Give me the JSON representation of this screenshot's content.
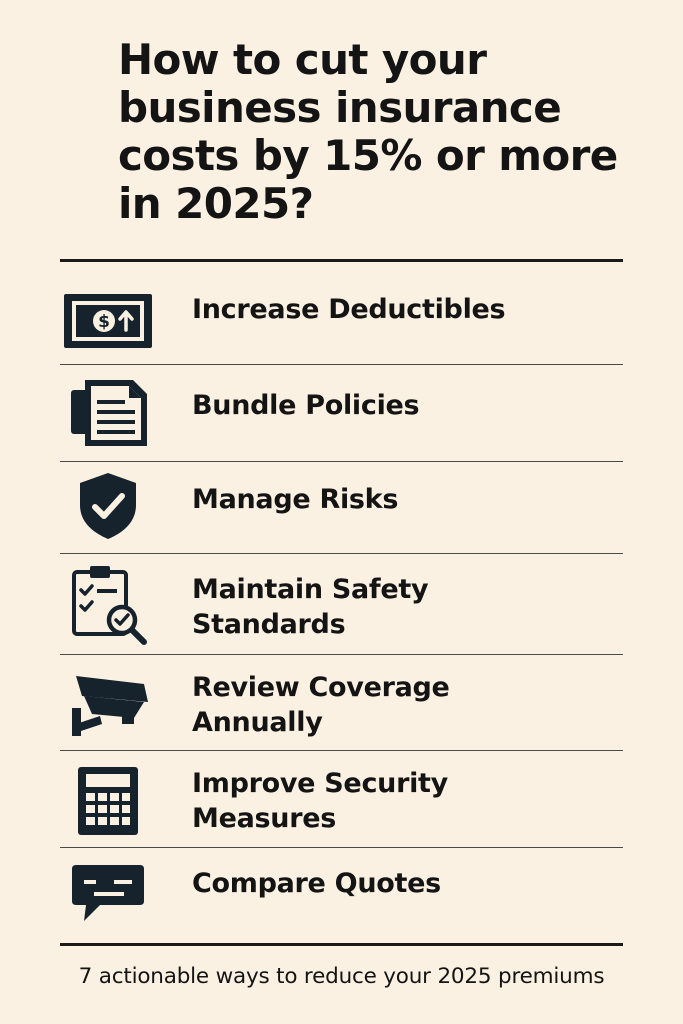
{
  "title": "How to cut your\nbusiness insurance\ncosts by 15% or more\nin 2025?",
  "items": [
    {
      "label_line1": "Increase Deductibles",
      "label_line2": "",
      "icon": "money-bill-icon"
    },
    {
      "label_line1": "Bundle Policies",
      "label_line2": "",
      "icon": "documents-icon"
    },
    {
      "label_line1": "Manage Risks",
      "label_line2": "",
      "icon": "shield-check-icon"
    },
    {
      "label_line1": "Maintain Safety",
      "label_line2": "Standards",
      "icon": "clipboard-search-icon"
    },
    {
      "label_line1": "Review Coverage",
      "label_line2": "Annually",
      "icon": "security-camera-icon"
    },
    {
      "label_line1": "Improve Security",
      "label_line2": "Measures",
      "icon": "calculator-icon"
    },
    {
      "label_line1": "Compare Quotes",
      "label_line2": "",
      "icon": "chat-bubble-icon"
    }
  ],
  "footer": "7 actionable ways to reduce your 2025 premiums",
  "colors": {
    "background": "#fbf1e3",
    "icon": "#16232d",
    "text": "#141414"
  }
}
